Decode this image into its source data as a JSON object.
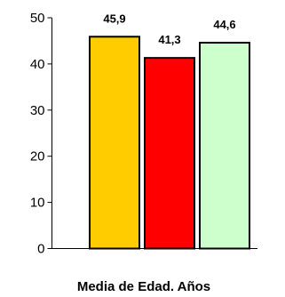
{
  "chart_data": {
    "type": "bar",
    "categories": [
      "",
      "",
      ""
    ],
    "values": [
      45.9,
      41.3,
      44.6
    ],
    "value_labels": [
      "45,9",
      "41,3",
      "44,6"
    ],
    "colors": [
      "#FFCC00",
      "#FF0000",
      "#CCFFCC"
    ],
    "title": "",
    "xlabel": "Media de Edad. Años",
    "ylabel": "",
    "ylim": [
      0,
      50
    ],
    "yticks": [
      0,
      10,
      20,
      30,
      40,
      50
    ],
    "ytick_labels": [
      "0",
      "10",
      "20",
      "30",
      "40",
      "50"
    ],
    "grid": false,
    "legend": "none"
  }
}
